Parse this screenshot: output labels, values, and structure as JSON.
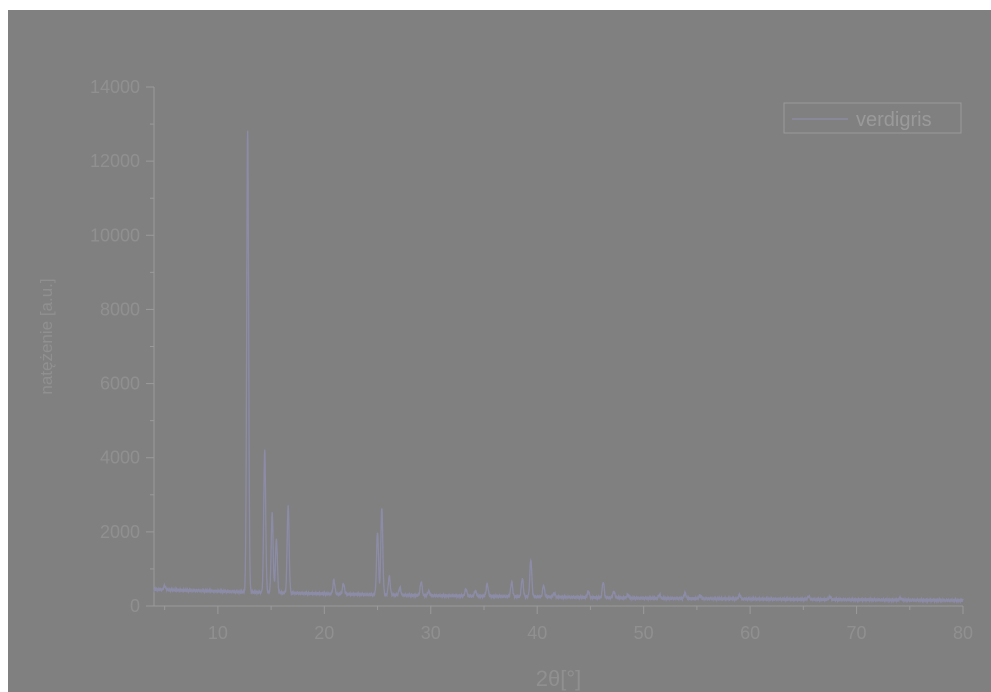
{
  "chart_data": {
    "type": "line",
    "xlabel": "2θ[°]",
    "ylabel": "natężenie [a.u.]",
    "xlim": [
      4,
      80
    ],
    "ylim": [
      0,
      14000
    ],
    "x_ticks": [
      10,
      20,
      30,
      40,
      50,
      60,
      70,
      80
    ],
    "y_ticks": [
      0,
      2000,
      4000,
      6000,
      8000,
      10000,
      12000,
      14000
    ],
    "legend_position": "top-right",
    "series": [
      {
        "name": "verdigris",
        "color": "#8c8ca8",
        "baseline": [
          [
            4,
            450
          ],
          [
            6,
            430
          ],
          [
            10,
            400
          ],
          [
            12,
            380
          ],
          [
            20,
            330
          ],
          [
            30,
            280
          ],
          [
            40,
            250
          ],
          [
            50,
            210
          ],
          [
            60,
            190
          ],
          [
            70,
            170
          ],
          [
            80,
            150
          ]
        ],
        "peaks": [
          {
            "x": 5.0,
            "y": 550
          },
          {
            "x": 12.8,
            "y": 12850
          },
          {
            "x": 14.4,
            "y": 4200
          },
          {
            "x": 15.1,
            "y": 2500
          },
          {
            "x": 15.5,
            "y": 1800
          },
          {
            "x": 16.6,
            "y": 2700
          },
          {
            "x": 20.9,
            "y": 700
          },
          {
            "x": 21.8,
            "y": 600
          },
          {
            "x": 25.0,
            "y": 2000
          },
          {
            "x": 25.4,
            "y": 2650
          },
          {
            "x": 26.1,
            "y": 800
          },
          {
            "x": 27.1,
            "y": 500
          },
          {
            "x": 29.1,
            "y": 650
          },
          {
            "x": 29.8,
            "y": 400
          },
          {
            "x": 33.3,
            "y": 450
          },
          {
            "x": 34.2,
            "y": 400
          },
          {
            "x": 35.3,
            "y": 600
          },
          {
            "x": 37.6,
            "y": 650
          },
          {
            "x": 38.6,
            "y": 750
          },
          {
            "x": 39.4,
            "y": 1250
          },
          {
            "x": 40.6,
            "y": 550
          },
          {
            "x": 41.6,
            "y": 350
          },
          {
            "x": 44.8,
            "y": 400
          },
          {
            "x": 46.2,
            "y": 650
          },
          {
            "x": 47.2,
            "y": 400
          },
          {
            "x": 48.5,
            "y": 300
          },
          {
            "x": 51.5,
            "y": 300
          },
          {
            "x": 53.9,
            "y": 350
          },
          {
            "x": 55.3,
            "y": 280
          },
          {
            "x": 59.0,
            "y": 300
          },
          {
            "x": 65.5,
            "y": 260
          },
          {
            "x": 67.5,
            "y": 240
          },
          {
            "x": 74.1,
            "y": 220
          }
        ]
      }
    ]
  }
}
